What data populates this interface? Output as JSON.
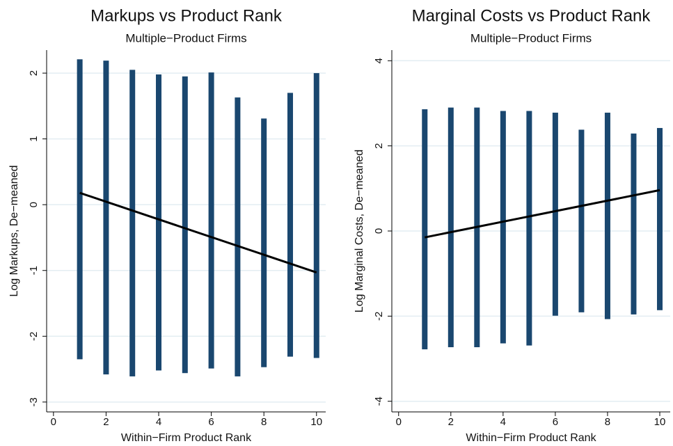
{
  "chart_data": [
    {
      "type": "strip",
      "title": "Markups vs Product Rank",
      "subtitle": "Multiple−Product Firms",
      "x_label": "Within−Firm Product Rank",
      "y_label": "Log Markups, De−meaned",
      "x": [
        1,
        2,
        3,
        4,
        5,
        6,
        7,
        8,
        9,
        10
      ],
      "ymax": [
        2.21,
        2.19,
        2.05,
        1.98,
        1.95,
        2.01,
        1.63,
        1.31,
        1.7,
        2.0
      ],
      "ymin": [
        -2.35,
        -2.58,
        -2.61,
        -2.52,
        -2.56,
        -2.49,
        -2.61,
        -2.47,
        -2.31,
        -2.33
      ],
      "color": "#1a476f",
      "fit": {
        "x": [
          1,
          10
        ],
        "y": [
          0.18,
          -1.03
        ]
      },
      "xlim": [
        -0.26,
        10.35
      ],
      "ylim": [
        -3.15,
        2.35
      ],
      "xticks": [
        0,
        2,
        4,
        6,
        8,
        10
      ],
      "yticks": [
        -3,
        -2,
        -1,
        0,
        1,
        2
      ],
      "grid": true
    },
    {
      "type": "strip",
      "title": "Marginal Costs vs Product Rank",
      "subtitle": "Multiple−Product Firms",
      "x_label": "Within−Firm Product Rank",
      "y_label": "Log Marginal Costs, De−meaned",
      "x": [
        1,
        2,
        3,
        4,
        5,
        6,
        7,
        8,
        9,
        10
      ],
      "ymax": [
        2.86,
        2.9,
        2.9,
        2.82,
        2.82,
        2.78,
        2.38,
        2.78,
        2.29,
        2.42
      ],
      "ymin": [
        -2.78,
        -2.73,
        -2.73,
        -2.64,
        -2.69,
        -1.99,
        -1.91,
        -2.07,
        -1.96,
        -1.86
      ],
      "color": "#1a476f",
      "fit": {
        "x": [
          1,
          10
        ],
        "y": [
          -0.15,
          0.96
        ]
      },
      "xlim": [
        -0.26,
        10.4
      ],
      "ylim": [
        -4.25,
        4.25
      ],
      "xticks": [
        0,
        2,
        4,
        6,
        8,
        10
      ],
      "yticks": [
        -4,
        -2,
        0,
        2,
        4
      ],
      "grid": true
    }
  ]
}
